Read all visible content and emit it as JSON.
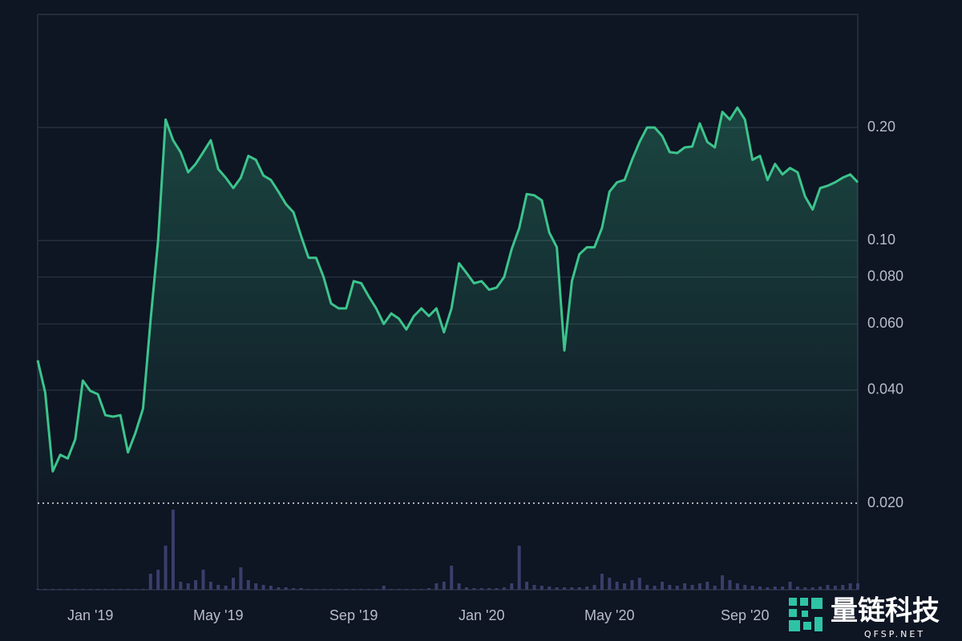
{
  "chart_data": {
    "type": "line",
    "log_scale": true,
    "grid": true,
    "color": "#3cc48c",
    "categories": [
      null,
      null,
      null,
      null,
      null,
      null,
      null,
      "Jan '19",
      null,
      null,
      null,
      null,
      null,
      null,
      null,
      null,
      null,
      null,
      null,
      null,
      null,
      null,
      null,
      null,
      "May '19",
      null,
      null,
      null,
      null,
      null,
      null,
      null,
      null,
      null,
      null,
      null,
      null,
      null,
      null,
      null,
      null,
      null,
      "Sep '19",
      null,
      null,
      null,
      null,
      null,
      null,
      null,
      null,
      null,
      null,
      null,
      null,
      null,
      null,
      null,
      null,
      "Jan '20",
      null,
      null,
      null,
      null,
      null,
      null,
      null,
      null,
      null,
      null,
      null,
      null,
      null,
      null,
      null,
      null,
      "May '20",
      null,
      null,
      null,
      null,
      null,
      null,
      null,
      null,
      null,
      null,
      null,
      null,
      null,
      null,
      null,
      null,
      null,
      "Sep '20",
      null,
      null,
      null,
      null,
      null,
      null,
      null,
      null,
      null,
      null,
      null,
      null,
      null,
      null,
      null
    ],
    "values": [
      0.048,
      0.0394,
      0.0243,
      0.0269,
      0.0263,
      0.0296,
      0.0424,
      0.0398,
      0.039,
      0.0343,
      0.034,
      0.0343,
      0.0273,
      0.0308,
      0.0357,
      0.0613,
      0.1,
      0.21,
      0.185,
      0.172,
      0.152,
      0.16,
      0.172,
      0.185,
      0.155,
      0.147,
      0.138,
      0.147,
      0.168,
      0.164,
      0.149,
      0.145,
      0.135,
      0.125,
      0.119,
      0.103,
      0.09,
      0.09,
      0.08,
      0.068,
      0.066,
      0.066,
      0.078,
      0.077,
      0.071,
      0.066,
      0.06,
      0.064,
      0.062,
      0.058,
      0.063,
      0.066,
      0.063,
      0.066,
      0.057,
      0.066,
      0.087,
      0.082,
      0.077,
      0.078,
      0.074,
      0.075,
      0.08,
      0.095,
      0.108,
      0.133,
      0.132,
      0.128,
      0.105,
      0.096,
      0.051,
      0.078,
      0.092,
      0.096,
      0.096,
      0.108,
      0.135,
      0.143,
      0.145,
      0.164,
      0.183,
      0.2,
      0.2,
      0.19,
      0.172,
      0.171,
      0.177,
      0.178,
      0.205,
      0.183,
      0.177,
      0.22,
      0.21,
      0.226,
      0.21,
      0.164,
      0.168,
      0.145,
      0.16,
      0.15,
      0.156,
      0.152,
      0.131,
      0.121,
      0.138,
      0.14,
      0.143,
      0.147,
      0.15,
      0.143
    ],
    "ylim": [
      0.02,
      0.4
    ],
    "yticks": [
      {
        "value": 0.02,
        "label": "0.020"
      },
      {
        "value": 0.04,
        "label": "0.040"
      },
      {
        "value": 0.06,
        "label": "0.060"
      },
      {
        "value": 0.08,
        "label": "0.080"
      },
      {
        "value": 0.1,
        "label": "0.10"
      },
      {
        "value": 0.2,
        "label": "0.20"
      }
    ],
    "volume": {
      "color": "#3a3e6a",
      "ylim": [
        0,
        100
      ],
      "values": [
        1,
        1,
        1,
        1,
        1,
        1,
        1,
        1,
        1,
        1,
        1,
        1,
        1,
        1,
        1,
        20,
        25,
        55,
        100,
        10,
        8,
        12,
        25,
        10,
        6,
        5,
        15,
        28,
        12,
        8,
        6,
        5,
        3,
        3,
        2,
        2,
        1,
        1,
        1,
        1,
        1,
        1,
        1,
        1,
        1,
        1,
        5,
        1,
        1,
        1,
        1,
        1,
        2,
        8,
        10,
        30,
        8,
        3,
        2,
        2,
        2,
        2,
        3,
        8,
        55,
        10,
        6,
        5,
        4,
        3,
        3,
        3,
        3,
        4,
        6,
        20,
        15,
        10,
        8,
        12,
        15,
        6,
        5,
        10,
        6,
        5,
        8,
        6,
        8,
        10,
        5,
        18,
        12,
        8,
        6,
        5,
        4,
        3,
        4,
        4,
        10,
        4,
        3,
        3,
        4,
        6,
        5,
        6,
        8,
        8
      ]
    }
  },
  "watermark": {
    "title": "量链科技",
    "subtitle": "QFSP.NET"
  }
}
